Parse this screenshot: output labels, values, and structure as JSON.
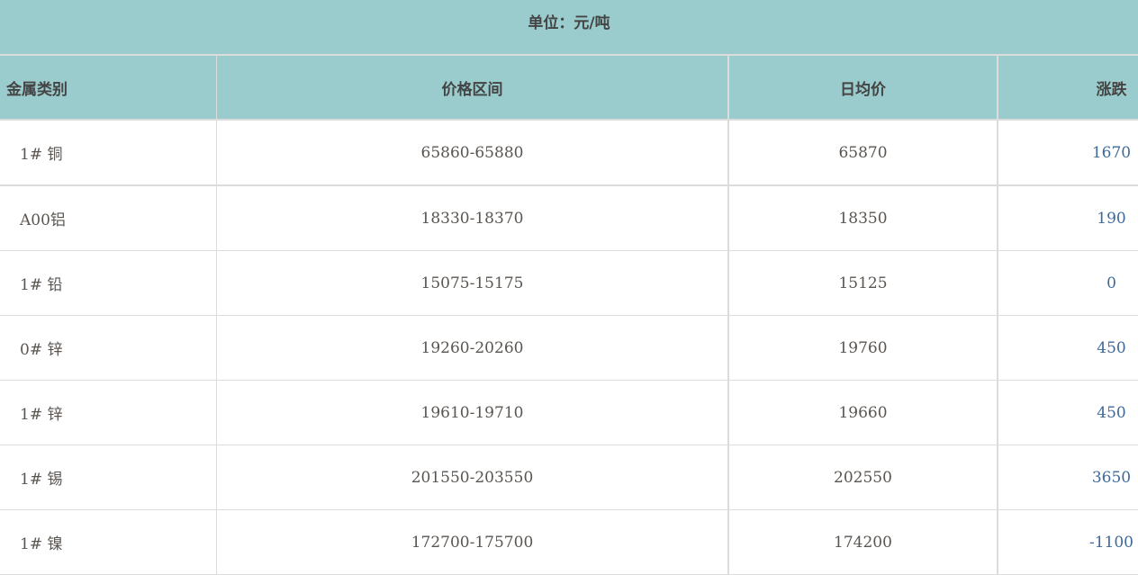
{
  "unit_title": "单位：元/吨",
  "columns": [
    "金属类别",
    "价格区间",
    "日均价",
    "涨跌"
  ],
  "rows": [
    {
      "metal": "1# 铜",
      "range": "65860-65880",
      "avg": "65870",
      "change": "1670"
    },
    {
      "metal": "A00铝",
      "range": "18330-18370",
      "avg": "18350",
      "change": "190"
    },
    {
      "metal": "1# 铅",
      "range": "15075-15175",
      "avg": "15125",
      "change": "0"
    },
    {
      "metal": "0# 锌",
      "range": "19260-20260",
      "avg": "19760",
      "change": "450"
    },
    {
      "metal": "1# 锌",
      "range": "19610-19710",
      "avg": "19660",
      "change": "450"
    },
    {
      "metal": "1# 锡",
      "range": "201550-203550",
      "avg": "202550",
      "change": "3650"
    },
    {
      "metal": "1# 镍",
      "range": "172700-175700",
      "avg": "174200",
      "change": "-1100"
    }
  ],
  "colors": {
    "header_bg": "#9acccd",
    "border": "#dcdcdc"
  }
}
